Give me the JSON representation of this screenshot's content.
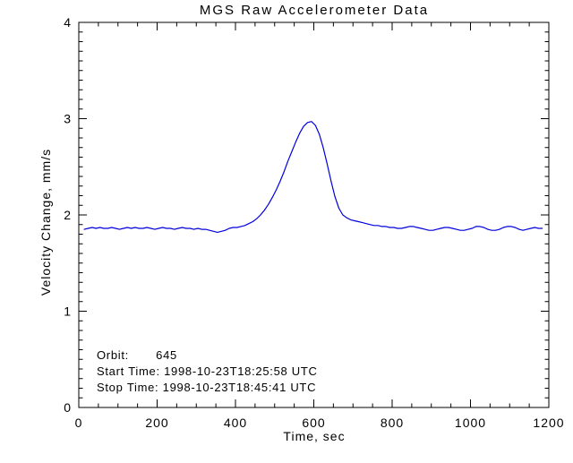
{
  "colors": {
    "line": "#0000dd",
    "axis": "#000000",
    "background": "#ffffff"
  },
  "chart_data": {
    "type": "line",
    "title": "MGS Raw Accelerometer Data",
    "xlabel": "Time, sec",
    "ylabel": "Velocity Change, mm/s",
    "xlim": [
      0,
      1200
    ],
    "ylim": [
      0,
      4
    ],
    "x_major_ticks": [
      0,
      200,
      400,
      600,
      800,
      1000,
      1200
    ],
    "x_tick_labels": [
      "0",
      "200",
      "400",
      "600",
      "800",
      "1000",
      "1200"
    ],
    "x_minor_interval": 50,
    "y_major_ticks": [
      0,
      1,
      2,
      3,
      4
    ],
    "y_tick_labels": [
      "0",
      "1",
      "2",
      "3",
      "4"
    ],
    "y_minor_interval": 0.1,
    "grid": false,
    "legend": "none",
    "annotations": [
      "Orbit:       645",
      "Start Time: 1998-10-23T18:25:58 UTC",
      "Stop Time: 1998-10-23T18:45:41 UTC"
    ],
    "series": [
      {
        "name": "velocity-change",
        "color": "#0000dd",
        "x": [
          14,
          24,
          34,
          44,
          54,
          64,
          74,
          84,
          94,
          104,
          114,
          124,
          134,
          144,
          154,
          164,
          174,
          184,
          194,
          204,
          214,
          224,
          234,
          244,
          254,
          264,
          274,
          284,
          294,
          304,
          314,
          324,
          334,
          344,
          354,
          364,
          374,
          384,
          394,
          404,
          414,
          424,
          434,
          444,
          454,
          464,
          474,
          484,
          494,
          504,
          514,
          524,
          534,
          544,
          554,
          564,
          574,
          584,
          594,
          604,
          614,
          624,
          634,
          644,
          654,
          664,
          674,
          684,
          694,
          704,
          714,
          724,
          734,
          744,
          754,
          764,
          774,
          784,
          794,
          804,
          814,
          824,
          834,
          844,
          854,
          864,
          874,
          884,
          894,
          904,
          914,
          924,
          934,
          944,
          954,
          964,
          974,
          984,
          994,
          1004,
          1014,
          1024,
          1034,
          1044,
          1054,
          1064,
          1074,
          1084,
          1094,
          1104,
          1114,
          1124,
          1134,
          1144,
          1154,
          1164,
          1174,
          1183
        ],
        "y": [
          1.85,
          1.86,
          1.87,
          1.86,
          1.87,
          1.86,
          1.86,
          1.87,
          1.86,
          1.85,
          1.86,
          1.87,
          1.86,
          1.87,
          1.86,
          1.86,
          1.87,
          1.86,
          1.85,
          1.86,
          1.87,
          1.86,
          1.86,
          1.85,
          1.86,
          1.87,
          1.86,
          1.86,
          1.85,
          1.86,
          1.85,
          1.85,
          1.84,
          1.83,
          1.82,
          1.83,
          1.84,
          1.86,
          1.87,
          1.87,
          1.88,
          1.89,
          1.91,
          1.93,
          1.96,
          2.0,
          2.05,
          2.11,
          2.18,
          2.26,
          2.35,
          2.45,
          2.56,
          2.66,
          2.76,
          2.85,
          2.92,
          2.96,
          2.97,
          2.93,
          2.84,
          2.7,
          2.53,
          2.35,
          2.19,
          2.07,
          2.0,
          1.97,
          1.95,
          1.94,
          1.93,
          1.92,
          1.91,
          1.9,
          1.89,
          1.89,
          1.88,
          1.88,
          1.87,
          1.87,
          1.86,
          1.86,
          1.87,
          1.88,
          1.88,
          1.87,
          1.86,
          1.85,
          1.84,
          1.84,
          1.85,
          1.86,
          1.87,
          1.87,
          1.86,
          1.85,
          1.84,
          1.84,
          1.85,
          1.86,
          1.88,
          1.88,
          1.87,
          1.85,
          1.84,
          1.84,
          1.85,
          1.87,
          1.88,
          1.88,
          1.87,
          1.85,
          1.84,
          1.85,
          1.86,
          1.87,
          1.86,
          1.86
        ]
      }
    ]
  }
}
